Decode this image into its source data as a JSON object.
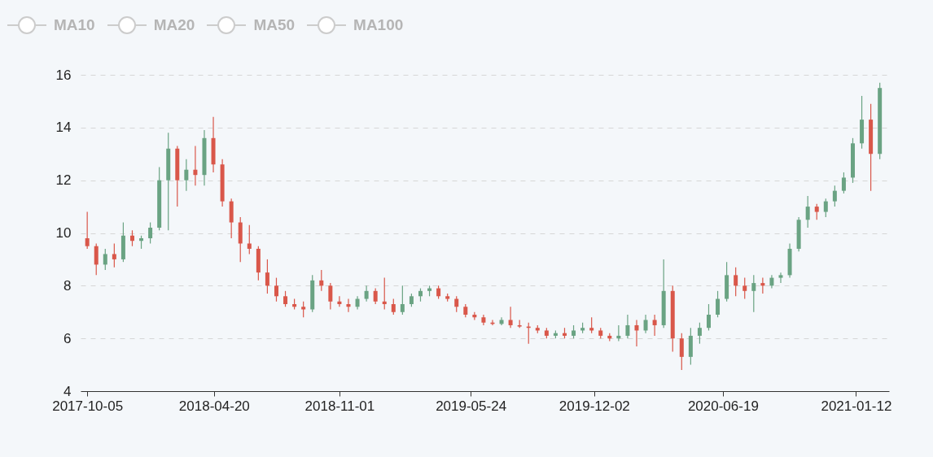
{
  "chart_data": {
    "type": "candlestick",
    "annotations": [
      "MA10",
      "MA20",
      "MA50",
      "MA100"
    ],
    "x": [
      "2017-10-05",
      "2017-10-19",
      "2017-11-02",
      "2017-11-16",
      "2017-11-30",
      "2017-12-14",
      "2017-12-28",
      "2018-01-11",
      "2018-01-25",
      "2018-02-08",
      "2018-02-22",
      "2018-03-08",
      "2018-03-22",
      "2018-04-05",
      "2018-04-19",
      "2018-05-03",
      "2018-05-17",
      "2018-05-31",
      "2018-06-14",
      "2018-06-28",
      "2018-07-12",
      "2018-07-26",
      "2018-08-09",
      "2018-08-23",
      "2018-09-06",
      "2018-09-20",
      "2018-10-04",
      "2018-10-18",
      "2018-11-01",
      "2018-11-15",
      "2018-11-29",
      "2018-12-13",
      "2018-12-27",
      "2019-01-10",
      "2019-01-24",
      "2019-02-07",
      "2019-02-21",
      "2019-03-07",
      "2019-03-21",
      "2019-04-04",
      "2019-04-18",
      "2019-05-02",
      "2019-05-16",
      "2019-05-30",
      "2019-06-13",
      "2019-06-27",
      "2019-07-11",
      "2019-07-25",
      "2019-08-08",
      "2019-08-22",
      "2019-09-05",
      "2019-09-19",
      "2019-10-03",
      "2019-10-17",
      "2019-10-31",
      "2019-11-14",
      "2019-11-28",
      "2019-12-12",
      "2019-12-26",
      "2020-01-09",
      "2020-01-23",
      "2020-02-06",
      "2020-02-20",
      "2020-03-05",
      "2020-03-19",
      "2020-04-02",
      "2020-04-16",
      "2020-04-30",
      "2020-05-14",
      "2020-05-28",
      "2020-06-11",
      "2020-06-25",
      "2020-07-09",
      "2020-07-23",
      "2020-08-06",
      "2020-08-20",
      "2020-09-03",
      "2020-09-17",
      "2020-10-01",
      "2020-10-15",
      "2020-10-29",
      "2020-11-12",
      "2020-11-26",
      "2020-12-10",
      "2020-12-24",
      "2021-01-07",
      "2021-01-21",
      "2021-02-04",
      "2021-02-18"
    ],
    "ohlc": [
      [
        9.8,
        10.8,
        9.4,
        9.5
      ],
      [
        9.5,
        9.6,
        8.4,
        8.8
      ],
      [
        8.8,
        9.4,
        8.6,
        9.2
      ],
      [
        9.2,
        9.6,
        8.7,
        9.0
      ],
      [
        9.0,
        10.4,
        8.9,
        9.9
      ],
      [
        9.9,
        10.1,
        9.5,
        9.7
      ],
      [
        9.7,
        9.9,
        9.4,
        9.8
      ],
      [
        9.8,
        10.4,
        9.6,
        10.2
      ],
      [
        10.2,
        12.5,
        10.1,
        12.0
      ],
      [
        12.0,
        13.8,
        10.1,
        13.2
      ],
      [
        13.2,
        13.3,
        11.0,
        12.0
      ],
      [
        12.0,
        12.8,
        11.6,
        12.4
      ],
      [
        12.4,
        13.3,
        11.8,
        12.2
      ],
      [
        12.2,
        13.9,
        11.8,
        13.6
      ],
      [
        13.6,
        14.4,
        12.3,
        12.6
      ],
      [
        12.6,
        12.8,
        11.0,
        11.2
      ],
      [
        11.2,
        11.3,
        9.8,
        10.4
      ],
      [
        10.4,
        10.6,
        8.9,
        9.6
      ],
      [
        9.6,
        10.3,
        9.2,
        9.4
      ],
      [
        9.4,
        9.5,
        8.2,
        8.5
      ],
      [
        8.5,
        9.0,
        7.7,
        8.0
      ],
      [
        8.0,
        8.3,
        7.4,
        7.6
      ],
      [
        7.6,
        7.8,
        7.2,
        7.3
      ],
      [
        7.3,
        7.5,
        7.1,
        7.2
      ],
      [
        7.2,
        7.4,
        6.8,
        7.1
      ],
      [
        7.1,
        8.4,
        7.0,
        8.2
      ],
      [
        8.2,
        8.6,
        7.8,
        8.0
      ],
      [
        8.0,
        8.1,
        7.1,
        7.4
      ],
      [
        7.4,
        7.6,
        7.2,
        7.3
      ],
      [
        7.3,
        7.5,
        7.0,
        7.2
      ],
      [
        7.2,
        7.6,
        7.1,
        7.5
      ],
      [
        7.5,
        8.0,
        7.4,
        7.8
      ],
      [
        7.8,
        7.9,
        7.3,
        7.4
      ],
      [
        7.4,
        8.3,
        7.1,
        7.3
      ],
      [
        7.3,
        7.5,
        6.9,
        7.0
      ],
      [
        7.0,
        8.0,
        6.9,
        7.3
      ],
      [
        7.3,
        7.7,
        7.2,
        7.6
      ],
      [
        7.6,
        7.9,
        7.4,
        7.8
      ],
      [
        7.8,
        8.0,
        7.6,
        7.9
      ],
      [
        7.9,
        8.0,
        7.5,
        7.6
      ],
      [
        7.6,
        7.7,
        7.4,
        7.5
      ],
      [
        7.5,
        7.6,
        7.0,
        7.2
      ],
      [
        7.2,
        7.3,
        6.8,
        6.9
      ],
      [
        6.9,
        7.0,
        6.7,
        6.8
      ],
      [
        6.8,
        6.9,
        6.5,
        6.6
      ],
      [
        6.6,
        6.7,
        6.5,
        6.55
      ],
      [
        6.55,
        6.8,
        6.5,
        6.7
      ],
      [
        6.7,
        7.2,
        6.4,
        6.5
      ],
      [
        6.5,
        6.7,
        6.4,
        6.45
      ],
      [
        6.45,
        6.6,
        5.8,
        6.4
      ],
      [
        6.4,
        6.5,
        6.2,
        6.3
      ],
      [
        6.3,
        6.4,
        6.0,
        6.1
      ],
      [
        6.1,
        6.3,
        6.0,
        6.2
      ],
      [
        6.2,
        6.4,
        6.0,
        6.1
      ],
      [
        6.1,
        6.5,
        6.0,
        6.3
      ],
      [
        6.3,
        6.6,
        6.2,
        6.4
      ],
      [
        6.4,
        6.8,
        6.2,
        6.3
      ],
      [
        6.3,
        6.4,
        6.0,
        6.1
      ],
      [
        6.1,
        6.2,
        5.9,
        6.0
      ],
      [
        6.0,
        6.5,
        5.9,
        6.1
      ],
      [
        6.1,
        6.9,
        6.0,
        6.5
      ],
      [
        6.5,
        6.7,
        5.7,
        6.3
      ],
      [
        6.3,
        6.9,
        6.2,
        6.7
      ],
      [
        6.7,
        6.9,
        6.1,
        6.5
      ],
      [
        6.5,
        9.0,
        6.4,
        7.8
      ],
      [
        7.8,
        8.0,
        5.5,
        6.0
      ],
      [
        6.0,
        6.2,
        4.8,
        5.3
      ],
      [
        5.3,
        6.4,
        5.0,
        6.1
      ],
      [
        6.1,
        6.6,
        5.8,
        6.4
      ],
      [
        6.4,
        7.3,
        6.3,
        6.9
      ],
      [
        6.9,
        7.8,
        6.8,
        7.5
      ],
      [
        7.5,
        8.9,
        7.4,
        8.4
      ],
      [
        8.4,
        8.7,
        7.6,
        8.0
      ],
      [
        8.0,
        8.3,
        7.5,
        7.8
      ],
      [
        7.8,
        8.4,
        7.0,
        8.1
      ],
      [
        8.1,
        8.3,
        7.7,
        8.0
      ],
      [
        8.0,
        8.4,
        7.9,
        8.3
      ],
      [
        8.3,
        8.5,
        8.1,
        8.4
      ],
      [
        8.4,
        9.6,
        8.3,
        9.4
      ],
      [
        9.4,
        10.6,
        9.3,
        10.5
      ],
      [
        10.5,
        11.4,
        10.2,
        11.0
      ],
      [
        11.0,
        11.1,
        10.5,
        10.8
      ],
      [
        10.8,
        11.3,
        10.6,
        11.2
      ],
      [
        11.2,
        11.8,
        11.0,
        11.6
      ],
      [
        11.6,
        12.3,
        11.5,
        12.1
      ],
      [
        12.1,
        13.6,
        11.9,
        13.4
      ],
      [
        13.4,
        15.2,
        13.2,
        14.3
      ],
      [
        14.3,
        14.9,
        11.6,
        13.0
      ],
      [
        13.0,
        15.7,
        12.8,
        15.5
      ]
    ],
    "colors": [
      "#d9574a",
      "#d9574a",
      "#6aa383",
      "#d9574a",
      "#6aa383",
      "#d9574a",
      "#6aa383",
      "#6aa383",
      "#6aa383",
      "#6aa383",
      "#d9574a",
      "#6aa383",
      "#d9574a",
      "#6aa383",
      "#d9574a",
      "#d9574a",
      "#d9574a",
      "#d9574a",
      "#d9574a",
      "#d9574a",
      "#d9574a",
      "#d9574a",
      "#d9574a",
      "#d9574a",
      "#d9574a",
      "#6aa383",
      "#d9574a",
      "#d9574a",
      "#d9574a",
      "#d9574a",
      "#6aa383",
      "#6aa383",
      "#d9574a",
      "#d9574a",
      "#d9574a",
      "#6aa383",
      "#6aa383",
      "#6aa383",
      "#6aa383",
      "#d9574a",
      "#d9574a",
      "#d9574a",
      "#d9574a",
      "#d9574a",
      "#d9574a",
      "#d9574a",
      "#6aa383",
      "#d9574a",
      "#d9574a",
      "#d9574a",
      "#d9574a",
      "#d9574a",
      "#6aa383",
      "#d9574a",
      "#6aa383",
      "#6aa383",
      "#d9574a",
      "#d9574a",
      "#d9574a",
      "#6aa383",
      "#6aa383",
      "#d9574a",
      "#6aa383",
      "#d9574a",
      "#6aa383",
      "#d9574a",
      "#d9574a",
      "#6aa383",
      "#6aa383",
      "#6aa383",
      "#6aa383",
      "#6aa383",
      "#d9574a",
      "#d9574a",
      "#6aa383",
      "#d9574a",
      "#6aa383",
      "#6aa383",
      "#6aa383",
      "#6aa383",
      "#6aa383",
      "#d9574a",
      "#6aa383",
      "#6aa383",
      "#6aa383",
      "#6aa383",
      "#6aa383",
      "#d9574a",
      "#6aa383"
    ],
    "xlim": [
      "2017-10-01",
      "2021-02-26"
    ],
    "xticks": [
      "2017-10-05",
      "2018-04-20",
      "2018-11-01",
      "2019-05-24",
      "2019-12-02",
      "2020-06-19",
      "2021-01-12"
    ],
    "ylim": [
      4,
      16
    ],
    "yticks": [
      4,
      6,
      8,
      10,
      12,
      14,
      16
    ],
    "grid": "y"
  }
}
